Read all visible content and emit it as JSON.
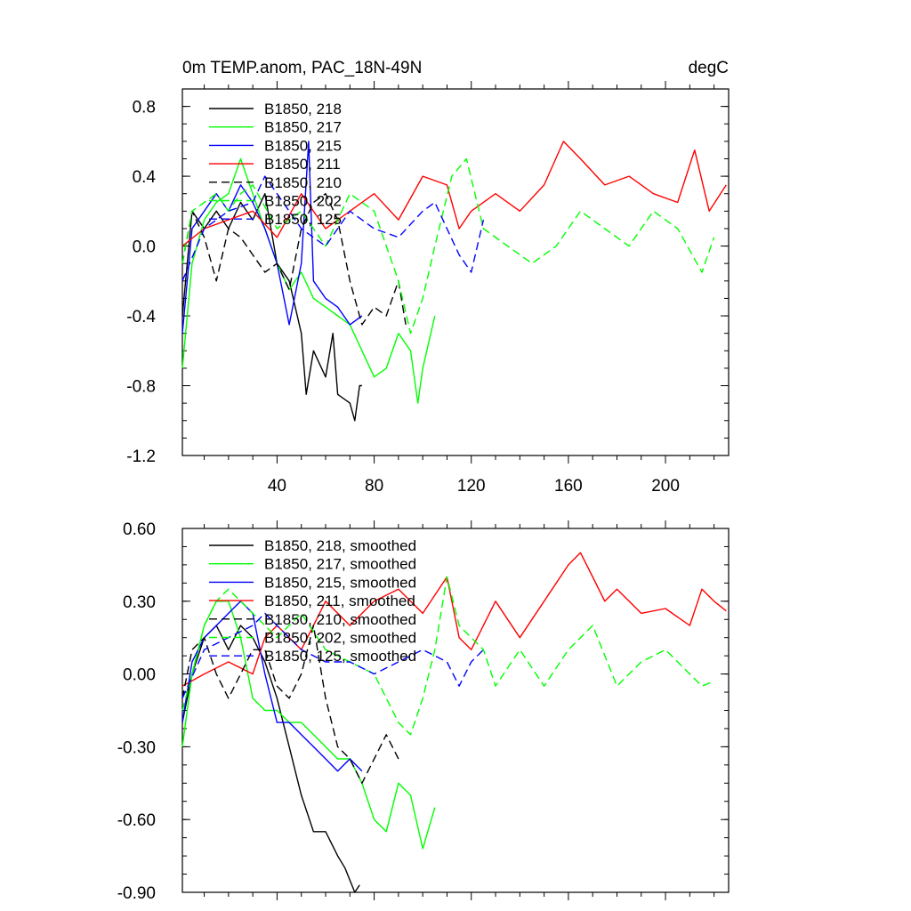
{
  "chart_data": [
    {
      "type": "line",
      "title": "0m TEMP.anom, PAC_18N-49N",
      "units": "degC",
      "xlim": [
        1,
        226
      ],
      "ylim": [
        -1.2,
        0.9
      ],
      "xticks": [
        40,
        80,
        120,
        160,
        200
      ],
      "xtick_labels": [
        "40",
        "80",
        "120",
        "160",
        "200"
      ],
      "yticks": [
        0.8,
        0.4,
        0.0,
        -0.4,
        -0.8,
        -1.2
      ],
      "ytick_labels": [
        "0.8",
        "0.4",
        "0.0",
        "-0.4",
        "-0.8",
        "-1.2"
      ],
      "series": [
        {
          "name": "B1850, 218",
          "color": "#000000",
          "dash": "solid",
          "x": [
            1,
            5,
            10,
            15,
            20,
            25,
            30,
            35,
            40,
            45,
            50,
            52,
            55,
            60,
            63,
            65,
            70,
            72,
            74,
            75
          ],
          "y": [
            -0.4,
            0.2,
            0.1,
            0.2,
            0.1,
            0.25,
            0.15,
            0.3,
            -0.1,
            -0.2,
            -0.5,
            -0.85,
            -0.6,
            -0.75,
            -0.5,
            -0.85,
            -0.9,
            -1.0,
            -0.8,
            -0.8
          ]
        },
        {
          "name": "B1850, 217",
          "color": "#00ff00",
          "dash": "solid",
          "x": [
            1,
            5,
            10,
            15,
            20,
            25,
            30,
            35,
            40,
            45,
            50,
            55,
            60,
            65,
            70,
            75,
            80,
            85,
            90,
            95,
            98,
            100,
            105
          ],
          "y": [
            -0.7,
            -0.1,
            0.15,
            0.25,
            0.3,
            0.5,
            0.3,
            0.1,
            -0.1,
            -0.25,
            -0.15,
            -0.3,
            -0.35,
            -0.4,
            -0.45,
            -0.6,
            -0.75,
            -0.7,
            -0.5,
            -0.6,
            -0.9,
            -0.7,
            -0.4
          ]
        },
        {
          "name": "B1850, 215",
          "color": "#0000ff",
          "dash": "solid",
          "x": [
            1,
            5,
            10,
            15,
            20,
            25,
            30,
            35,
            40,
            45,
            50,
            53,
            55,
            60,
            65,
            70,
            75
          ],
          "y": [
            -0.5,
            0.1,
            0.2,
            0.3,
            0.2,
            0.35,
            0.25,
            0.1,
            -0.1,
            -0.45,
            -0.1,
            0.6,
            -0.2,
            -0.3,
            -0.35,
            -0.45,
            -0.4
          ]
        },
        {
          "name": "B1850, 211",
          "color": "#ff0000",
          "dash": "solid",
          "x": [
            1,
            10,
            20,
            30,
            40,
            50,
            60,
            70,
            80,
            90,
            100,
            110,
            115,
            120,
            130,
            140,
            150,
            158,
            165,
            175,
            185,
            195,
            205,
            212,
            218,
            225
          ],
          "y": [
            0.0,
            0.1,
            0.15,
            0.2,
            0.05,
            0.3,
            0.1,
            0.2,
            0.3,
            0.15,
            0.4,
            0.35,
            0.1,
            0.2,
            0.3,
            0.2,
            0.35,
            0.6,
            0.5,
            0.35,
            0.4,
            0.3,
            0.25,
            0.55,
            0.2,
            0.35
          ]
        },
        {
          "name": "B1850, 210",
          "color": "#000000",
          "dash": "dashed",
          "x": [
            1,
            5,
            10,
            15,
            20,
            25,
            30,
            35,
            40,
            45,
            50,
            55,
            60,
            65,
            70,
            75,
            80,
            85,
            90,
            93
          ],
          "y": [
            -0.1,
            0.2,
            0.05,
            -0.2,
            0.1,
            0.05,
            -0.05,
            -0.15,
            -0.1,
            -0.25,
            0.1,
            0.25,
            0.3,
            0.15,
            -0.2,
            -0.45,
            -0.35,
            -0.4,
            -0.2,
            -0.45
          ]
        },
        {
          "name": "B1850, 202",
          "color": "#00ff00",
          "dash": "dashed",
          "x": [
            1,
            5,
            10,
            15,
            20,
            25,
            30,
            40,
            50,
            60,
            70,
            80,
            90,
            95,
            100,
            105,
            112,
            118,
            125,
            135,
            145,
            155,
            165,
            175,
            185,
            195,
            205,
            215,
            220
          ],
          "y": [
            -0.1,
            0.2,
            0.25,
            0.3,
            0.2,
            0.3,
            0.35,
            0.1,
            0.2,
            0.0,
            0.3,
            0.2,
            -0.2,
            -0.5,
            -0.3,
            0.0,
            0.4,
            0.5,
            0.1,
            0.0,
            -0.1,
            0.0,
            0.2,
            0.1,
            0.0,
            0.2,
            0.1,
            -0.15,
            0.05
          ]
        },
        {
          "name": "B1850, 125",
          "color": "#0000ff",
          "dash": "dashed",
          "x": [
            1,
            10,
            20,
            30,
            35,
            40,
            50,
            60,
            70,
            80,
            90,
            100,
            105,
            110,
            115,
            120,
            125
          ],
          "y": [
            -0.2,
            0.1,
            0.2,
            0.25,
            0.4,
            0.3,
            0.1,
            0.0,
            0.2,
            0.1,
            0.05,
            0.2,
            0.25,
            0.1,
            -0.05,
            -0.15,
            0.15
          ]
        }
      ]
    },
    {
      "type": "line",
      "xlim": [
        1,
        226
      ],
      "ylim": [
        -0.9,
        0.6
      ],
      "xticks": [
        40,
        80,
        120,
        160,
        200
      ],
      "xtick_labels": [
        "",
        "",
        "",
        "",
        ""
      ],
      "yticks": [
        0.6,
        0.3,
        0.0,
        -0.3,
        -0.6,
        -0.9
      ],
      "ytick_labels": [
        "0.60",
        "0.30",
        "0.00",
        "-0.30",
        "-0.60",
        "-0.90"
      ],
      "series": [
        {
          "name": "B1850, 218, smoothed",
          "color": "#000000",
          "dash": "solid",
          "x": [
            1,
            5,
            10,
            15,
            20,
            25,
            30,
            35,
            40,
            45,
            50,
            55,
            60,
            65,
            68,
            70,
            72,
            74
          ],
          "y": [
            -0.2,
            0.0,
            0.15,
            0.2,
            0.1,
            0.2,
            0.15,
            0.05,
            -0.1,
            -0.3,
            -0.5,
            -0.65,
            -0.65,
            -0.75,
            -0.8,
            -0.85,
            -0.9,
            -0.87
          ]
        },
        {
          "name": "B1850, 217, smoothed",
          "color": "#00ff00",
          "dash": "solid",
          "x": [
            1,
            5,
            10,
            15,
            20,
            25,
            30,
            35,
            40,
            45,
            50,
            55,
            60,
            65,
            70,
            75,
            80,
            85,
            90,
            95,
            100,
            105
          ],
          "y": [
            -0.3,
            0.0,
            0.2,
            0.3,
            0.3,
            0.15,
            -0.1,
            -0.15,
            -0.15,
            -0.2,
            -0.2,
            -0.25,
            -0.3,
            -0.35,
            -0.35,
            -0.45,
            -0.6,
            -0.65,
            -0.45,
            -0.5,
            -0.72,
            -0.55
          ]
        },
        {
          "name": "B1850, 215, smoothed",
          "color": "#0000ff",
          "dash": "solid",
          "x": [
            1,
            5,
            10,
            15,
            20,
            25,
            30,
            35,
            40,
            45,
            50,
            55,
            60,
            65,
            70,
            75
          ],
          "y": [
            -0.2,
            0.05,
            0.15,
            0.2,
            0.25,
            0.3,
            0.25,
            0.0,
            -0.2,
            -0.2,
            -0.25,
            -0.3,
            -0.35,
            -0.4,
            -0.35,
            -0.4
          ]
        },
        {
          "name": "B1850, 211, smoothed",
          "color": "#ff0000",
          "dash": "solid",
          "x": [
            1,
            10,
            20,
            30,
            35,
            40,
            50,
            60,
            70,
            80,
            90,
            100,
            110,
            115,
            120,
            130,
            140,
            150,
            160,
            165,
            170,
            175,
            180,
            190,
            200,
            210,
            215,
            220,
            225
          ],
          "y": [
            -0.05,
            0.0,
            0.05,
            0.0,
            0.15,
            0.2,
            0.1,
            0.3,
            0.2,
            0.3,
            0.35,
            0.25,
            0.4,
            0.15,
            0.1,
            0.3,
            0.15,
            0.3,
            0.45,
            0.5,
            0.4,
            0.3,
            0.35,
            0.25,
            0.27,
            0.2,
            0.35,
            0.3,
            0.26
          ]
        },
        {
          "name": "B1850, 210, smoothed",
          "color": "#000000",
          "dash": "dashed",
          "x": [
            1,
            5,
            10,
            15,
            20,
            25,
            30,
            35,
            40,
            45,
            50,
            55,
            60,
            65,
            70,
            75,
            80,
            85,
            90
          ],
          "y": [
            -0.1,
            0.1,
            0.15,
            0.0,
            -0.1,
            0.0,
            0.1,
            0.1,
            -0.05,
            -0.1,
            0.0,
            0.2,
            -0.1,
            -0.3,
            -0.35,
            -0.45,
            -0.35,
            -0.25,
            -0.35
          ]
        },
        {
          "name": "B1850, 202, smoothed",
          "color": "#00ff00",
          "dash": "dashed",
          "x": [
            1,
            5,
            10,
            15,
            20,
            25,
            30,
            40,
            50,
            60,
            70,
            80,
            90,
            95,
            100,
            105,
            110,
            115,
            120,
            125,
            130,
            140,
            150,
            160,
            170,
            180,
            190,
            200,
            210,
            215,
            220
          ],
          "y": [
            -0.15,
            0.0,
            0.2,
            0.3,
            0.35,
            0.3,
            0.25,
            0.15,
            0.25,
            0.1,
            0.05,
            0.0,
            -0.2,
            -0.25,
            -0.1,
            0.1,
            0.4,
            0.2,
            0.15,
            0.1,
            -0.05,
            0.1,
            -0.05,
            0.1,
            0.2,
            -0.05,
            0.05,
            0.1,
            0.0,
            -0.05,
            -0.03
          ]
        },
        {
          "name": "B1850, 125, smoothed",
          "color": "#0000ff",
          "dash": "dashed",
          "x": [
            1,
            10,
            20,
            30,
            35,
            40,
            50,
            60,
            70,
            80,
            90,
            100,
            110,
            115,
            120,
            125
          ],
          "y": [
            -0.1,
            0.1,
            0.15,
            0.2,
            0.25,
            0.2,
            0.1,
            0.05,
            0.05,
            0.0,
            0.05,
            0.1,
            0.05,
            -0.05,
            0.05,
            0.1
          ]
        }
      ]
    }
  ]
}
